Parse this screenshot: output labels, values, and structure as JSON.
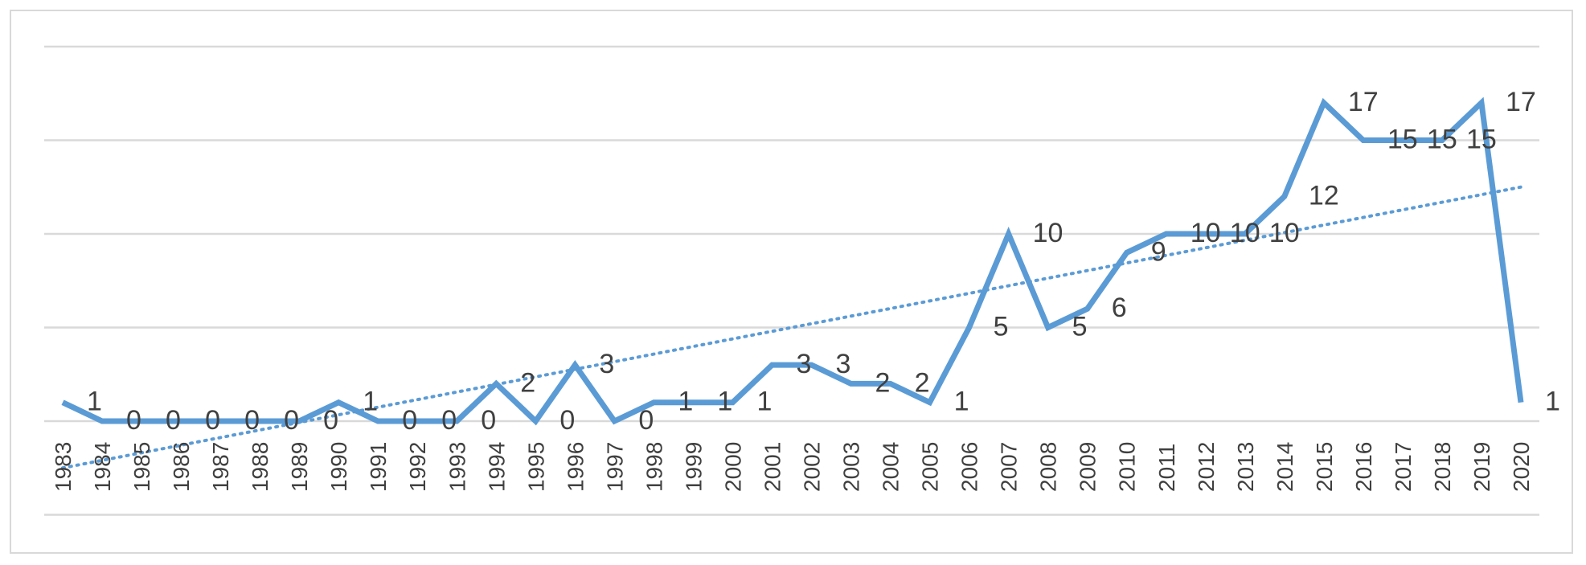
{
  "chart_data": {
    "type": "line",
    "title": "",
    "xlabel": "",
    "ylabel": "",
    "ylim": [
      -5,
      20
    ],
    "grid": true,
    "legend": "none",
    "categories": [
      "1983",
      "1984",
      "1985",
      "1986",
      "1987",
      "1988",
      "1989",
      "1990",
      "1991",
      "1992",
      "1993",
      "1994",
      "1995",
      "1996",
      "1997",
      "1998",
      "1999",
      "2000",
      "2001",
      "2002",
      "2003",
      "2004",
      "2005",
      "2006",
      "2007",
      "2008",
      "2009",
      "2010",
      "2011",
      "2012",
      "2013",
      "2014",
      "2015",
      "2016",
      "2017",
      "2018",
      "2019",
      "2020"
    ],
    "series": [
      {
        "name": "",
        "color": "#5b9bd5",
        "values": [
          1,
          0,
          0,
          0,
          0,
          0,
          0,
          1,
          0,
          0,
          0,
          2,
          0,
          3,
          0,
          1,
          1,
          1,
          3,
          3,
          2,
          2,
          1,
          5,
          10,
          5,
          6,
          9,
          10,
          10,
          10,
          12,
          17,
          15,
          15,
          15,
          17,
          1
        ],
        "data_labels": [
          "1",
          "0",
          "0",
          "0",
          "0",
          "0",
          "0",
          "1",
          "0",
          "0",
          "0",
          "2",
          "0",
          "3",
          "0",
          "1",
          "1",
          "1",
          "3",
          "3",
          "2",
          "2",
          "1",
          "5",
          "10",
          "5",
          "6",
          "9",
          "10",
          "10",
          "10",
          "12",
          "17",
          "15",
          "15",
          "15",
          "17",
          "1"
        ]
      }
    ],
    "trendline": {
      "style": "dotted",
      "color": "#5b9bd5",
      "start": -2.5,
      "end": 12.5
    }
  }
}
